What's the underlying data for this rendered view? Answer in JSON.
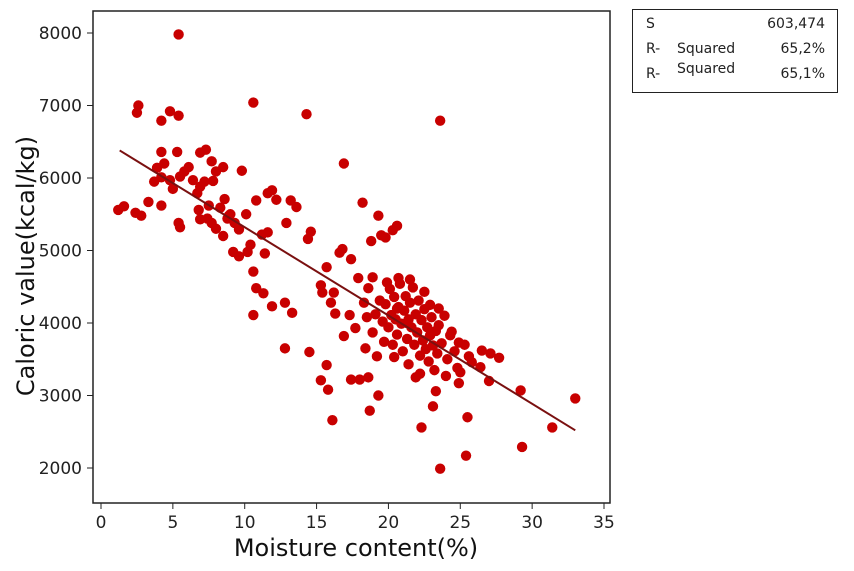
{
  "colors": {
    "point": "#c80000",
    "line": "#7a1010",
    "axis": "#222222"
  },
  "chart_data": {
    "type": "scatter",
    "xlabel": "Moisture content(%)",
    "ylabel": "Caloric value(kcal/kg)",
    "xlim": [
      0,
      35
    ],
    "ylim": [
      1800,
      8300
    ],
    "x_ticks": [
      "0",
      "5",
      "10",
      "15",
      "20",
      "25",
      "30",
      "35"
    ],
    "y_ticks": [
      "2000",
      "3000",
      "4000",
      "5000",
      "6000",
      "7000",
      "8000"
    ],
    "grid": false,
    "fit_line": {
      "x": [
        1.3,
        33.0
      ],
      "y": [
        6380,
        2520
      ]
    },
    "points": [
      [
        5.4,
        7980
      ],
      [
        10.6,
        7040
      ],
      [
        2.6,
        7000
      ],
      [
        2.5,
        6900
      ],
      [
        4.8,
        6920
      ],
      [
        5.4,
        6860
      ],
      [
        4.2,
        6790
      ],
      [
        14.3,
        6880
      ],
      [
        23.6,
        6790
      ],
      [
        4.2,
        6360
      ],
      [
        5.3,
        6360
      ],
      [
        6.9,
        6350
      ],
      [
        7.3,
        6390
      ],
      [
        8.5,
        6150
      ],
      [
        9.8,
        6100
      ],
      [
        7.7,
        6230
      ],
      [
        16.9,
        6200
      ],
      [
        1.2,
        5560
      ],
      [
        1.6,
        5610
      ],
      [
        2.4,
        5520
      ],
      [
        2.8,
        5480
      ],
      [
        3.3,
        5670
      ],
      [
        3.7,
        5950
      ],
      [
        3.9,
        6140
      ],
      [
        4.2,
        6010
      ],
      [
        4.4,
        6200
      ],
      [
        4.8,
        5970
      ],
      [
        5.0,
        5850
      ],
      [
        5.5,
        6020
      ],
      [
        5.8,
        6090
      ],
      [
        6.1,
        6150
      ],
      [
        6.4,
        5970
      ],
      [
        6.7,
        5790
      ],
      [
        6.9,
        5880
      ],
      [
        7.2,
        5950
      ],
      [
        7.5,
        5620
      ],
      [
        7.8,
        5960
      ],
      [
        8.0,
        6090
      ],
      [
        8.3,
        5590
      ],
      [
        8.6,
        5710
      ],
      [
        8.8,
        5440
      ],
      [
        9.0,
        5500
      ],
      [
        9.3,
        5380
      ],
      [
        9.6,
        5290
      ],
      [
        4.2,
        5620
      ],
      [
        5.4,
        5380
      ],
      [
        5.5,
        5320
      ],
      [
        6.8,
        5560
      ],
      [
        6.9,
        5430
      ],
      [
        7.4,
        5440
      ],
      [
        7.7,
        5380
      ],
      [
        8.0,
        5300
      ],
      [
        8.5,
        5200
      ],
      [
        8.9,
        5480
      ],
      [
        9.2,
        4980
      ],
      [
        9.6,
        4920
      ],
      [
        10.1,
        5500
      ],
      [
        10.4,
        5080
      ],
      [
        10.8,
        5690
      ],
      [
        11.2,
        5220
      ],
      [
        11.6,
        5790
      ],
      [
        11.9,
        5830
      ],
      [
        12.2,
        5700
      ],
      [
        12.9,
        5380
      ],
      [
        13.2,
        5690
      ],
      [
        13.6,
        5600
      ],
      [
        14.4,
        5160
      ],
      [
        14.6,
        5260
      ],
      [
        11.6,
        5250
      ],
      [
        11.4,
        4960
      ],
      [
        10.2,
        4980
      ],
      [
        10.6,
        4710
      ],
      [
        10.8,
        4480
      ],
      [
        11.3,
        4410
      ],
      [
        11.9,
        4230
      ],
      [
        10.6,
        4110
      ],
      [
        12.8,
        4280
      ],
      [
        13.3,
        4140
      ],
      [
        12.8,
        3650
      ],
      [
        14.5,
        3600
      ],
      [
        15.3,
        4520
      ],
      [
        15.4,
        4420
      ],
      [
        15.7,
        4770
      ],
      [
        16.0,
        4280
      ],
      [
        16.2,
        4420
      ],
      [
        16.6,
        4970
      ],
      [
        16.8,
        5020
      ],
      [
        17.4,
        4880
      ],
      [
        17.9,
        4620
      ],
      [
        18.2,
        5660
      ],
      [
        18.8,
        5130
      ],
      [
        19.3,
        5480
      ],
      [
        19.5,
        5210
      ],
      [
        19.8,
        5180
      ],
      [
        20.3,
        5280
      ],
      [
        20.6,
        5340
      ],
      [
        16.3,
        4130
      ],
      [
        16.9,
        3820
      ],
      [
        17.3,
        4110
      ],
      [
        17.7,
        3930
      ],
      [
        15.3,
        3210
      ],
      [
        15.8,
        3080
      ],
      [
        15.7,
        3420
      ],
      [
        16.1,
        2660
      ],
      [
        17.4,
        3220
      ],
      [
        18.0,
        3220
      ],
      [
        18.6,
        3250
      ],
      [
        18.7,
        2790
      ],
      [
        19.3,
        3000
      ],
      [
        22.3,
        2560
      ],
      [
        23.6,
        1990
      ],
      [
        25.4,
        2170
      ],
      [
        25.5,
        2700
      ],
      [
        24.9,
        3170
      ],
      [
        23.1,
        2850
      ],
      [
        29.3,
        2290
      ],
      [
        31.4,
        2560
      ],
      [
        33.0,
        2960
      ],
      [
        29.2,
        3070
      ],
      [
        27.0,
        3200
      ],
      [
        26.4,
        3390
      ],
      [
        27.7,
        3520
      ],
      [
        27.1,
        3580
      ],
      [
        26.5,
        3620
      ],
      [
        25.8,
        3460
      ],
      [
        24.8,
        3380
      ],
      [
        18.4,
        3650
      ],
      [
        18.9,
        3870
      ],
      [
        19.1,
        4120
      ],
      [
        19.4,
        4310
      ],
      [
        19.6,
        4020
      ],
      [
        19.8,
        4260
      ],
      [
        20.0,
        3940
      ],
      [
        20.1,
        4470
      ],
      [
        20.2,
        4110
      ],
      [
        20.3,
        3700
      ],
      [
        20.4,
        4360
      ],
      [
        20.5,
        4050
      ],
      [
        20.6,
        3840
      ],
      [
        20.7,
        4220
      ],
      [
        20.8,
        4540
      ],
      [
        20.9,
        3990
      ],
      [
        21.0,
        3610
      ],
      [
        21.1,
        4170
      ],
      [
        21.2,
        4370
      ],
      [
        21.3,
        3780
      ],
      [
        21.4,
        4050
      ],
      [
        21.5,
        4280
      ],
      [
        21.6,
        3940
      ],
      [
        21.7,
        4490
      ],
      [
        21.8,
        3700
      ],
      [
        21.9,
        4120
      ],
      [
        22.0,
        3870
      ],
      [
        22.1,
        4310
      ],
      [
        22.2,
        3550
      ],
      [
        22.3,
        4040
      ],
      [
        22.4,
        3760
      ],
      [
        22.5,
        4190
      ],
      [
        22.6,
        3640
      ],
      [
        22.7,
        3940
      ],
      [
        22.8,
        3470
      ],
      [
        22.9,
        3830
      ],
      [
        23.0,
        4080
      ],
      [
        23.1,
        3690
      ],
      [
        23.2,
        3350
      ],
      [
        23.3,
        3890
      ],
      [
        23.4,
        3580
      ],
      [
        23.5,
        3970
      ],
      [
        23.7,
        3720
      ],
      [
        23.9,
        4100
      ],
      [
        24.1,
        3500
      ],
      [
        24.3,
        3830
      ],
      [
        24.6,
        3610
      ],
      [
        24.9,
        3730
      ],
      [
        19.9,
        4560
      ],
      [
        20.7,
        4620
      ],
      [
        21.5,
        4600
      ],
      [
        22.5,
        4430
      ],
      [
        23.5,
        4200
      ],
      [
        24.4,
        3880
      ],
      [
        19.2,
        3540
      ],
      [
        20.4,
        3530
      ],
      [
        21.4,
        3430
      ],
      [
        22.2,
        3300
      ],
      [
        21.9,
        3250
      ],
      [
        23.3,
        3060
      ],
      [
        24.0,
        3270
      ],
      [
        25.3,
        3700
      ],
      [
        25.6,
        3540
      ],
      [
        25.0,
        3320
      ],
      [
        18.3,
        4280
      ],
      [
        18.6,
        4480
      ],
      [
        18.9,
        4630
      ],
      [
        18.5,
        4080
      ],
      [
        19.7,
        3740
      ],
      [
        20.6,
        4200
      ],
      [
        21.3,
        4000
      ],
      [
        22.9,
        4250
      ]
    ]
  },
  "stats": {
    "rows": [
      {
        "label": "S",
        "label2": "",
        "value": "603,474"
      },
      {
        "label": "R-",
        "label2": "Squared",
        "value": "65,2%"
      },
      {
        "label": "R-",
        "label2": "Squared",
        "value": "65,1%"
      }
    ]
  }
}
